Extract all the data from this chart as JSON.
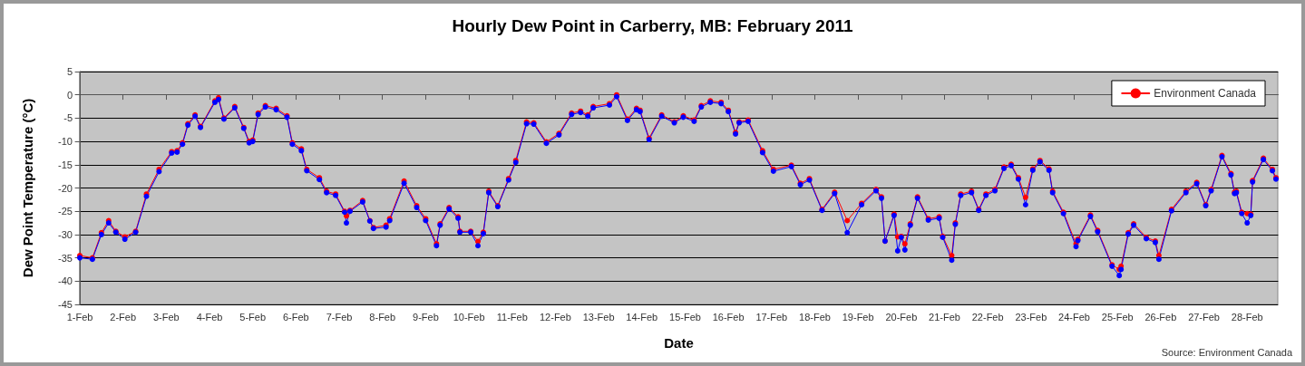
{
  "chart_data": {
    "type": "line",
    "title": "Hourly Dew Point in Carberry, MB: February 2011",
    "xlabel": "Date",
    "ylabel": "Dew Point Temperature (°C)",
    "annotations": [
      "Source: Environment Canada"
    ],
    "x": [
      "2011-02-01T00:00",
      "2011-02-01T07:00",
      "2011-02-01T12:00",
      "2011-02-01T16:00",
      "2011-02-01T20:00",
      "2011-02-02T01:00",
      "2011-02-02T07:00",
      "2011-02-02T13:00",
      "2011-02-02T20:00",
      "2011-02-03T03:00",
      "2011-02-03T06:00",
      "2011-02-03T09:00",
      "2011-02-03T12:00",
      "2011-02-03T16:00",
      "2011-02-03T19:00",
      "2011-02-04T03:00",
      "2011-02-04T05:00",
      "2011-02-04T08:00",
      "2011-02-04T14:00",
      "2011-02-04T19:00",
      "2011-02-04T22:00",
      "2011-02-05T00:00",
      "2011-02-05T03:00",
      "2011-02-05T07:00",
      "2011-02-05T13:00",
      "2011-02-05T19:00",
      "2011-02-05T22:00",
      "2011-02-06T03:00",
      "2011-02-06T06:00",
      "2011-02-06T13:00",
      "2011-02-06T17:00",
      "2011-02-06T22:00",
      "2011-02-07T03:00",
      "2011-02-07T04:00",
      "2011-02-07T06:00",
      "2011-02-07T13:00",
      "2011-02-07T17:00",
      "2011-02-07T19:00",
      "2011-02-08T02:00",
      "2011-02-08T04:00",
      "2011-02-08T12:00",
      "2011-02-08T19:00",
      "2011-02-09T00:00",
      "2011-02-09T06:00",
      "2011-02-09T08:00",
      "2011-02-09T13:00",
      "2011-02-09T18:00",
      "2011-02-09T19:00",
      "2011-02-10T01:00",
      "2011-02-10T05:00",
      "2011-02-10T08:00",
      "2011-02-10T11:00",
      "2011-02-10T16:00",
      "2011-02-10T22:00",
      "2011-02-11T02:00",
      "2011-02-11T08:00",
      "2011-02-11T12:00",
      "2011-02-11T19:00",
      "2011-02-12T02:00",
      "2011-02-12T09:00",
      "2011-02-12T14:00",
      "2011-02-12T18:00",
      "2011-02-12T21:00",
      "2011-02-13T06:00",
      "2011-02-13T10:00",
      "2011-02-13T16:00",
      "2011-02-13T21:00",
      "2011-02-13T23:00",
      "2011-02-14T04:00",
      "2011-02-14T11:00",
      "2011-02-14T18:00",
      "2011-02-14T23:00",
      "2011-02-15T05:00",
      "2011-02-15T09:00",
      "2011-02-15T14:00",
      "2011-02-15T20:00",
      "2011-02-16T00:00",
      "2011-02-16T04:00",
      "2011-02-16T06:00",
      "2011-02-16T11:00",
      "2011-02-16T19:00",
      "2011-02-17T01:00",
      "2011-02-17T11:00",
      "2011-02-17T16:00",
      "2011-02-17T21:00",
      "2011-02-18T04:00",
      "2011-02-18T11:00",
      "2011-02-18T18:00",
      "2011-02-19T02:00",
      "2011-02-19T10:00",
      "2011-02-19T13:00",
      "2011-02-19T15:00",
      "2011-02-19T20:00",
      "2011-02-19T22:00",
      "2011-02-20T00:00",
      "2011-02-20T02:00",
      "2011-02-20T05:00",
      "2011-02-20T09:00",
      "2011-02-20T15:00",
      "2011-02-20T21:00",
      "2011-02-20T23:00",
      "2011-02-21T04:00",
      "2011-02-21T06:00",
      "2011-02-21T09:00",
      "2011-02-21T15:00",
      "2011-02-21T19:00",
      "2011-02-21T23:00",
      "2011-02-22T04:00",
      "2011-02-22T09:00",
      "2011-02-22T13:00",
      "2011-02-22T17:00",
      "2011-02-22T21:00",
      "2011-02-23T01:00",
      "2011-02-23T05:00",
      "2011-02-23T10:00",
      "2011-02-23T12:00",
      "2011-02-23T18:00",
      "2011-02-24T01:00",
      "2011-02-24T02:00",
      "2011-02-24T09:00",
      "2011-02-24T13:00",
      "2011-02-24T21:00",
      "2011-02-25T01:00",
      "2011-02-25T02:00",
      "2011-02-25T06:00",
      "2011-02-25T09:00",
      "2011-02-25T16:00",
      "2011-02-25T21:00",
      "2011-02-25T23:00",
      "2011-02-26T06:00",
      "2011-02-26T14:00",
      "2011-02-26T20:00",
      "2011-02-27T01:00",
      "2011-02-27T04:00",
      "2011-02-27T10:00",
      "2011-02-27T15:00",
      "2011-02-27T17:00",
      "2011-02-27T18:00",
      "2011-02-27T21:00",
      "2011-02-28T00:00",
      "2011-02-28T02:00",
      "2011-02-28T03:00",
      "2011-02-28T09:00",
      "2011-02-28T14:00",
      "2011-02-28T16:00"
    ],
    "series": [
      {
        "name": "Environment Canada",
        "color": "#ff0000",
        "values": [
          -34.5,
          -35,
          -29.6,
          -27,
          -29.3,
          -30.5,
          -29.3,
          -21.3,
          -16,
          -12.2,
          -12,
          -10.3,
          -6.2,
          -4.3,
          -6.8,
          -1.3,
          -0.6,
          -5,
          -2.5,
          -7,
          -10,
          -9.7,
          -3.9,
          -2.3,
          -2.9,
          -4.5,
          -10.3,
          -11.6,
          -16,
          -17.8,
          -20.7,
          -21.3,
          -25,
          -26,
          -24.8,
          -22.7,
          -27,
          -28.5,
          -28,
          -26.6,
          -18.5,
          -23.8,
          -26.6,
          -32,
          -27.7,
          -24.2,
          -26.2,
          -29.3,
          -29.3,
          -31.5,
          -29.5,
          -20.7,
          -23.8,
          -18,
          -14.1,
          -5.8,
          -6,
          -10.1,
          -8.3,
          -3.9,
          -3.5,
          -4.3,
          -2.5,
          -1.9,
          0,
          -5.2,
          -2.9,
          -3.3,
          -9.3,
          -4.3,
          -5.8,
          -4.5,
          -5.4,
          -2.3,
          -1.3,
          -1.6,
          -3.3,
          -8.1,
          -5.8,
          -5.4,
          -12,
          -16,
          -15.1,
          -19,
          -18,
          -24.6,
          -20.9,
          -27,
          -23.3,
          -20.3,
          -21.9,
          -31.4,
          -25.6,
          -30.5,
          -30.4,
          -32,
          -27.7,
          -21.9,
          -26.6,
          -26.2,
          -30.4,
          -34.5,
          -27.5,
          -21.3,
          -20.7,
          -24.6,
          -21.3,
          -20.3,
          -15.5,
          -14.9,
          -17.8,
          -22,
          -15.9,
          -14.1,
          -15.9,
          -20.7,
          -25.2,
          -32,
          -31,
          -25.8,
          -29.1,
          -36.5,
          -37.5,
          -36.8,
          -29.6,
          -27.7,
          -30.6,
          -31.4,
          -34.5,
          -24.6,
          -20.7,
          -18.8,
          -23.6,
          -20.3,
          -13,
          -16.9,
          -20.9,
          -20.7,
          -25.2,
          -25.5,
          -25.6,
          -18.4,
          -13.6,
          -16,
          -17.8
        ]
      },
      {
        "color": "#0000ff",
        "values": [
          -35,
          -35.3,
          -30,
          -27.5,
          -29.5,
          -31,
          -29.5,
          -21.8,
          -16.5,
          -12.5,
          -12.3,
          -10.6,
          -6.5,
          -4.6,
          -7,
          -1.6,
          -1,
          -5.2,
          -2.8,
          -7.2,
          -10.3,
          -10,
          -4.2,
          -2.6,
          -3.2,
          -4.8,
          -10.6,
          -12,
          -16.3,
          -18.2,
          -21,
          -21.6,
          -25.2,
          -27.5,
          -25,
          -23,
          -27.1,
          -28.7,
          -28.4,
          -27,
          -19,
          -24.2,
          -27,
          -32.4,
          -28,
          -24.5,
          -26.5,
          -29.5,
          -29.5,
          -32.4,
          -29.8,
          -21,
          -24,
          -18.3,
          -14.5,
          -6.2,
          -6.3,
          -10.4,
          -8.6,
          -4.2,
          -3.8,
          -4.6,
          -2.8,
          -2.2,
          -0.4,
          -5.5,
          -3.2,
          -3.6,
          -9.6,
          -4.6,
          -6,
          -4.8,
          -5.7,
          -2.6,
          -1.6,
          -1.9,
          -3.6,
          -8.4,
          -6,
          -5.7,
          -12.4,
          -16.4,
          -15.4,
          -19.3,
          -18.3,
          -24.8,
          -21.2,
          -29.6,
          -23.6,
          -20.6,
          -22.2,
          -31.4,
          -25.9,
          -33.5,
          -30.6,
          -33.3,
          -28,
          -22.2,
          -26.9,
          -26.5,
          -30.6,
          -35.5,
          -27.8,
          -21.6,
          -21,
          -24.8,
          -21.6,
          -20.6,
          -15.8,
          -15.2,
          -18.1,
          -23.6,
          -16.2,
          -14.4,
          -16.2,
          -21,
          -25.5,
          -32.6,
          -31.3,
          -26.1,
          -29.4,
          -36.8,
          -38.8,
          -37.5,
          -29.9,
          -28,
          -30.9,
          -31.7,
          -35.3,
          -24.9,
          -21,
          -19.1,
          -23.8,
          -20.6,
          -13.3,
          -17.2,
          -21.2,
          -21,
          -25.5,
          -27.5,
          -25.9,
          -18.7,
          -13.9,
          -16.3,
          -18.1
        ]
      }
    ],
    "xlim": [
      "2011-02-01T00:00",
      "2011-02-28T17:00"
    ],
    "xticks": [
      {
        "value": "2011-02-01",
        "label": "1-Feb"
      },
      {
        "value": "2011-02-02",
        "label": "2-Feb"
      },
      {
        "value": "2011-02-03",
        "label": "3-Feb"
      },
      {
        "value": "2011-02-04",
        "label": "4-Feb"
      },
      {
        "value": "2011-02-05",
        "label": "5-Feb"
      },
      {
        "value": "2011-02-06",
        "label": "6-Feb"
      },
      {
        "value": "2011-02-07",
        "label": "7-Feb"
      },
      {
        "value": "2011-02-08",
        "label": "8-Feb"
      },
      {
        "value": "2011-02-09",
        "label": "9-Feb"
      },
      {
        "value": "2011-02-10",
        "label": "10-Feb"
      },
      {
        "value": "2011-02-11",
        "label": "11-Feb"
      },
      {
        "value": "2011-02-12",
        "label": "12-Feb"
      },
      {
        "value": "2011-02-13",
        "label": "13-Feb"
      },
      {
        "value": "2011-02-14",
        "label": "14-Feb"
      },
      {
        "value": "2011-02-15",
        "label": "15-Feb"
      },
      {
        "value": "2011-02-16",
        "label": "16-Feb"
      },
      {
        "value": "2011-02-17",
        "label": "17-Feb"
      },
      {
        "value": "2011-02-18",
        "label": "18-Feb"
      },
      {
        "value": "2011-02-19",
        "label": "19-Feb"
      },
      {
        "value": "2011-02-20",
        "label": "20-Feb"
      },
      {
        "value": "2011-02-21",
        "label": "21-Feb"
      },
      {
        "value": "2011-02-22",
        "label": "22-Feb"
      },
      {
        "value": "2011-02-23",
        "label": "23-Feb"
      },
      {
        "value": "2011-02-24",
        "label": "24-Feb"
      },
      {
        "value": "2011-02-25",
        "label": "25-Feb"
      },
      {
        "value": "2011-02-26",
        "label": "26-Feb"
      },
      {
        "value": "2011-02-27",
        "label": "27-Feb"
      },
      {
        "value": "2011-02-28",
        "label": "28-Feb"
      }
    ],
    "ylim": [
      -45,
      5
    ],
    "yticks": [
      -45,
      -40,
      -35,
      -30,
      -25,
      -20,
      -15,
      -10,
      -5,
      0,
      5
    ],
    "grid": "y",
    "legend": "top right",
    "marker": "circle",
    "line_style": "solid"
  }
}
